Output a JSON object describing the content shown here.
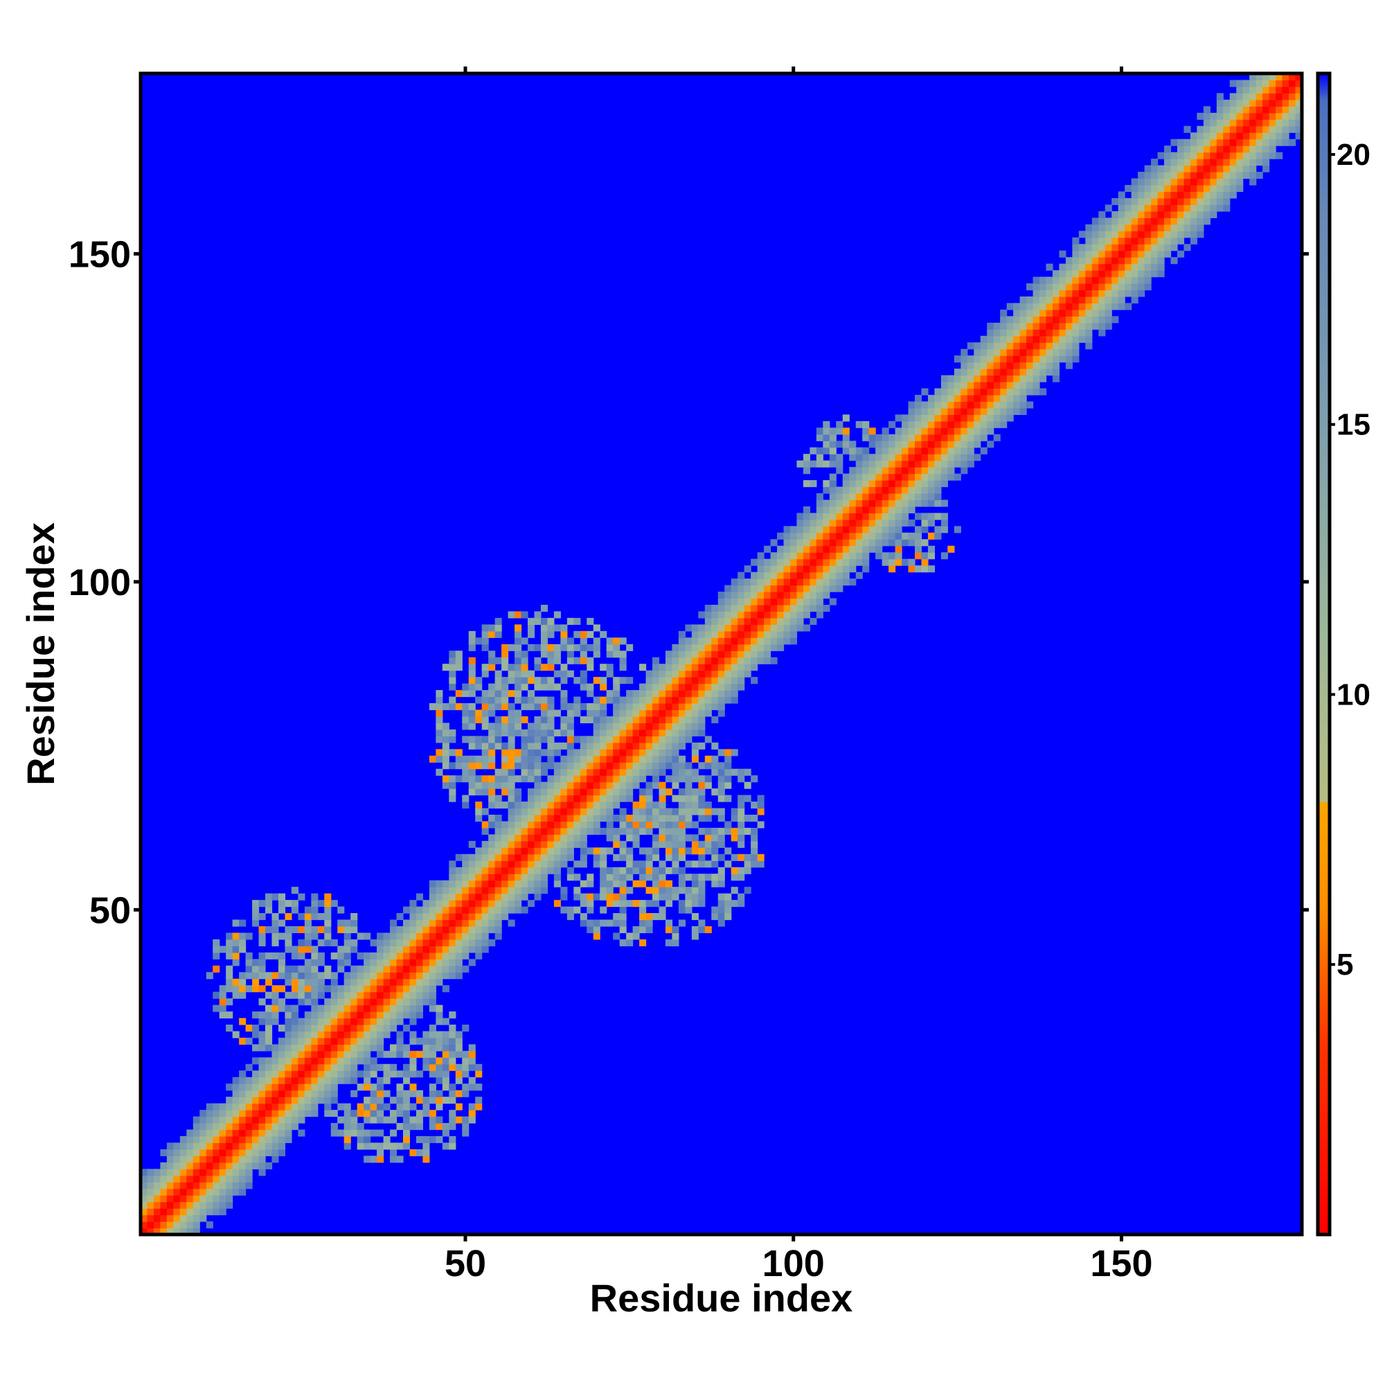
{
  "chart_data": {
    "type": "heatmap",
    "xlabel": "Residue index",
    "ylabel": "Residue index",
    "xlim": [
      1,
      177
    ],
    "ylim": [
      1,
      177
    ],
    "x_ticks": [
      50,
      100,
      150
    ],
    "y_ticks": [
      50,
      100,
      150
    ],
    "colorbar": {
      "ticks": [
        5,
        10,
        15,
        20
      ],
      "range": [
        0,
        21.5
      ],
      "stops": [
        {
          "value": 0,
          "color": "#ff0000"
        },
        {
          "value": 3.5,
          "color": "#ff3300"
        },
        {
          "value": 6.0,
          "color": "#ff8c00"
        },
        {
          "value": 8.0,
          "color": "#ffa500"
        },
        {
          "value": 8.01,
          "color": "#b7bd82"
        },
        {
          "value": 11.0,
          "color": "#9fb89a"
        },
        {
          "value": 15.0,
          "color": "#7f9fae"
        },
        {
          "value": 19.0,
          "color": "#6688b8"
        },
        {
          "value": 21.0,
          "color": "#4a6fc0"
        },
        {
          "value": 21.5,
          "color": "#0000ff"
        }
      ]
    },
    "background_color": "#0000ff",
    "pattern": {
      "description_values": "symmetric residue distance map; diagonal band plus off-diagonal contact clusters",
      "diagonal_band_halfwidth": 9,
      "clusters": [
        {
          "center": [
            24,
            40
          ],
          "radius": 13
        },
        {
          "center": [
            40,
            24
          ],
          "radius": 13
        },
        {
          "center": [
            62,
            78
          ],
          "radius": 18
        },
        {
          "center": [
            78,
            62
          ],
          "radius": 18
        },
        {
          "center": [
            108,
            118
          ],
          "radius": 7
        },
        {
          "center": [
            118,
            108
          ],
          "radius": 7
        }
      ]
    }
  }
}
